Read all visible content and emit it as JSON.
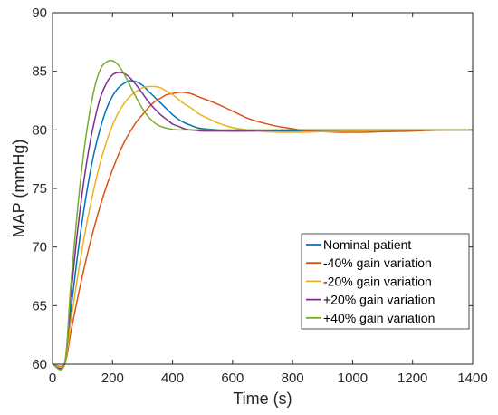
{
  "chart_data": {
    "type": "line",
    "title": "",
    "xlabel": "Time (s)",
    "ylabel": "MAP (mmHg)",
    "xlim": [
      0,
      1400
    ],
    "ylim": [
      60,
      90
    ],
    "xticks": [
      0,
      200,
      400,
      600,
      800,
      1000,
      1200,
      1400
    ],
    "yticks": [
      60,
      65,
      70,
      75,
      80,
      85,
      90
    ],
    "xtick_labels": [
      "0",
      "200",
      "400",
      "600",
      "800",
      "1000",
      "1200",
      "1400"
    ],
    "ytick_labels": [
      "60",
      "65",
      "70",
      "75",
      "80",
      "85",
      "90"
    ],
    "grid": false,
    "legend_position": "bottom-right",
    "series": [
      {
        "name": "Nominal patient",
        "color": "#0072BD",
        "x": [
          0,
          40,
          60,
          80,
          100,
          120,
          140,
          160,
          180,
          200,
          220,
          240,
          260,
          280,
          300,
          320,
          340,
          360,
          380,
          400,
          420,
          440,
          460,
          480,
          500,
          550,
          600,
          650,
          700,
          750,
          800,
          900,
          1000,
          1100,
          1200,
          1300,
          1400
        ],
        "y": [
          60,
          60,
          64.4,
          68.6,
          72.4,
          75.6,
          78.2,
          80.2,
          81.8,
          82.9,
          83.6,
          84.0,
          84.2,
          84.1,
          83.8,
          83.3,
          82.8,
          82.3,
          81.8,
          81.3,
          80.9,
          80.6,
          80.4,
          80.2,
          80.1,
          80.0,
          79.9,
          79.9,
          79.9,
          79.9,
          79.9,
          79.95,
          79.95,
          80.0,
          80.0,
          80.0,
          80.0
        ]
      },
      {
        "name": "-40% gain variation",
        "color": "#D95319",
        "x": [
          0,
          40,
          60,
          80,
          100,
          120,
          140,
          160,
          180,
          200,
          220,
          240,
          260,
          280,
          300,
          320,
          340,
          360,
          380,
          400,
          420,
          440,
          460,
          480,
          500,
          550,
          600,
          650,
          700,
          750,
          800,
          850,
          900,
          950,
          1000,
          1050,
          1100,
          1200,
          1300,
          1400
        ],
        "y": [
          60,
          60,
          62.6,
          65.2,
          67.6,
          69.8,
          71.8,
          73.6,
          75.2,
          76.6,
          77.9,
          79.0,
          79.9,
          80.7,
          81.3,
          81.9,
          82.4,
          82.7,
          83.0,
          83.1,
          83.2,
          83.2,
          83.1,
          82.9,
          82.7,
          82.2,
          81.6,
          81.0,
          80.6,
          80.3,
          80.1,
          79.9,
          79.85,
          79.8,
          79.8,
          79.8,
          79.85,
          79.9,
          80.0,
          80.0
        ]
      },
      {
        "name": "-20% gain variation",
        "color": "#EDB120",
        "x": [
          0,
          40,
          60,
          80,
          100,
          120,
          140,
          160,
          180,
          200,
          220,
          240,
          260,
          280,
          300,
          320,
          340,
          360,
          380,
          400,
          420,
          440,
          460,
          480,
          500,
          550,
          600,
          650,
          700,
          750,
          800,
          850,
          900,
          1000,
          1100,
          1200,
          1300,
          1400
        ],
        "y": [
          60,
          60,
          63.5,
          66.9,
          70.0,
          72.8,
          75.2,
          77.3,
          79.0,
          80.4,
          81.5,
          82.3,
          82.9,
          83.3,
          83.6,
          83.7,
          83.7,
          83.6,
          83.3,
          83.0,
          82.6,
          82.2,
          81.9,
          81.5,
          81.2,
          80.6,
          80.2,
          80.0,
          79.85,
          79.8,
          79.8,
          79.8,
          79.85,
          79.9,
          79.95,
          80.0,
          80.0,
          80.0
        ]
      },
      {
        "name": "+20% gain variation",
        "color": "#7E2F8E",
        "x": [
          0,
          40,
          60,
          80,
          100,
          120,
          140,
          160,
          180,
          200,
          220,
          240,
          260,
          280,
          300,
          320,
          340,
          360,
          380,
          400,
          420,
          440,
          460,
          480,
          500,
          550,
          600,
          700,
          800,
          900,
          1000,
          1200,
          1400
        ],
        "y": [
          60,
          60,
          65.6,
          70.6,
          74.8,
          78.2,
          80.8,
          82.8,
          84.0,
          84.7,
          84.9,
          84.8,
          84.4,
          83.8,
          83.1,
          82.4,
          81.8,
          81.3,
          80.9,
          80.5,
          80.3,
          80.1,
          80.0,
          79.95,
          79.9,
          79.9,
          79.9,
          79.95,
          80.0,
          80.0,
          80.0,
          80.0,
          80.0
        ]
      },
      {
        "name": "+40% gain variation",
        "color": "#77AC30",
        "x": [
          0,
          40,
          60,
          80,
          100,
          120,
          140,
          160,
          180,
          200,
          220,
          240,
          260,
          280,
          300,
          320,
          340,
          360,
          380,
          400,
          420,
          440,
          460,
          500,
          600,
          700,
          800,
          1000,
          1200,
          1400
        ],
        "y": [
          60,
          60,
          66.5,
          72.3,
          77.2,
          80.9,
          83.6,
          85.2,
          85.8,
          85.9,
          85.5,
          84.7,
          83.7,
          82.7,
          81.8,
          81.1,
          80.6,
          80.3,
          80.15,
          80.05,
          80.0,
          80.0,
          80.0,
          80.0,
          80.0,
          80.0,
          80.0,
          80.0,
          80.0,
          80.0
        ]
      }
    ]
  }
}
